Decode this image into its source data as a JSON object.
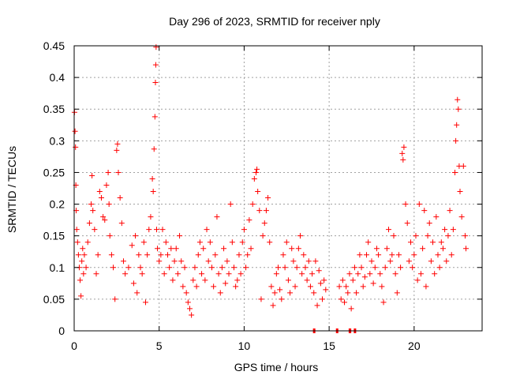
{
  "chart_data": {
    "type": "scatter",
    "title": "Day 296 of 2023, SRMTID for receiver nply",
    "xlabel": "GPS time / hours",
    "ylabel": "SRMTID / TECUs",
    "xlim": [
      0,
      24
    ],
    "ylim": [
      0,
      0.45
    ],
    "x_ticks": [
      0,
      5,
      10,
      15,
      20
    ],
    "x_tick_labels": [
      "0",
      "5",
      "10",
      "15",
      "20"
    ],
    "y_ticks": [
      0,
      0.05,
      0.1,
      0.15,
      0.2,
      0.25,
      0.3,
      0.35,
      0.4,
      0.45
    ],
    "y_tick_labels": [
      "0",
      "0.05",
      "0.1",
      "0.15",
      "0.2",
      "0.25",
      "0.3",
      "0.35",
      "0.4",
      "0.45"
    ],
    "grid": true,
    "marker": "+",
    "color": "#ff0000",
    "series": [
      {
        "name": "SRMTID",
        "points": [
          [
            0.02,
            0.345
          ],
          [
            0.05,
            0.315
          ],
          [
            0.08,
            0.29
          ],
          [
            0.1,
            0.23
          ],
          [
            0.12,
            0.19
          ],
          [
            0.15,
            0.16
          ],
          [
            0.2,
            0.14
          ],
          [
            0.25,
            0.12
          ],
          [
            0.3,
            0.1
          ],
          [
            0.35,
            0.08
          ],
          [
            0.4,
            0.055
          ],
          [
            0.45,
            0.11
          ],
          [
            0.5,
            0.13
          ],
          [
            0.55,
            0.09
          ],
          [
            0.6,
            0.12
          ],
          [
            0.7,
            0.1
          ],
          [
            0.8,
            0.14
          ],
          [
            0.9,
            0.17
          ],
          [
            1.0,
            0.2
          ],
          [
            1.05,
            0.245
          ],
          [
            1.1,
            0.19
          ],
          [
            1.2,
            0.16
          ],
          [
            1.3,
            0.09
          ],
          [
            1.4,
            0.12
          ],
          [
            1.5,
            0.22
          ],
          [
            1.6,
            0.21
          ],
          [
            1.7,
            0.18
          ],
          [
            1.8,
            0.175
          ],
          [
            1.9,
            0.23
          ],
          [
            2.0,
            0.25
          ],
          [
            2.05,
            0.2
          ],
          [
            2.1,
            0.15
          ],
          [
            2.2,
            0.12
          ],
          [
            2.3,
            0.1
          ],
          [
            2.4,
            0.05
          ],
          [
            2.5,
            0.285
          ],
          [
            2.55,
            0.295
          ],
          [
            2.6,
            0.25
          ],
          [
            2.7,
            0.21
          ],
          [
            2.8,
            0.17
          ],
          [
            2.9,
            0.11
          ],
          [
            3.0,
            0.09
          ],
          [
            3.2,
            0.1
          ],
          [
            3.4,
            0.135
          ],
          [
            3.5,
            0.075
          ],
          [
            3.6,
            0.15
          ],
          [
            3.7,
            0.06
          ],
          [
            3.8,
            0.12
          ],
          [
            3.9,
            0.1
          ],
          [
            4.0,
            0.09
          ],
          [
            4.1,
            0.14
          ],
          [
            4.2,
            0.045
          ],
          [
            4.3,
            0.12
          ],
          [
            4.4,
            0.16
          ],
          [
            4.5,
            0.18
          ],
          [
            4.6,
            0.24
          ],
          [
            4.65,
            0.22
          ],
          [
            4.7,
            0.287
          ],
          [
            4.75,
            0.338
          ],
          [
            4.78,
            0.392
          ],
          [
            4.8,
            0.42
          ],
          [
            4.82,
            0.448
          ],
          [
            4.85,
            0.16
          ],
          [
            4.9,
            0.13
          ],
          [
            5.0,
            0.11
          ],
          [
            5.1,
            0.12
          ],
          [
            5.2,
            0.16
          ],
          [
            5.3,
            0.09
          ],
          [
            5.4,
            0.14
          ],
          [
            5.5,
            0.12
          ],
          [
            5.6,
            0.1
          ],
          [
            5.7,
            0.13
          ],
          [
            5.8,
            0.08
          ],
          [
            5.9,
            0.11
          ],
          [
            6.0,
            0.13
          ],
          [
            6.1,
            0.09
          ],
          [
            6.2,
            0.15
          ],
          [
            6.3,
            0.11
          ],
          [
            6.4,
            0.07
          ],
          [
            6.5,
            0.1
          ],
          [
            6.6,
            0.06
          ],
          [
            6.7,
            0.045
          ],
          [
            6.8,
            0.035
          ],
          [
            6.9,
            0.025
          ],
          [
            7.0,
            0.08
          ],
          [
            7.1,
            0.1
          ],
          [
            7.2,
            0.07
          ],
          [
            7.3,
            0.12
          ],
          [
            7.4,
            0.14
          ],
          [
            7.5,
            0.09
          ],
          [
            7.6,
            0.13
          ],
          [
            7.7,
            0.08
          ],
          [
            7.8,
            0.16
          ],
          [
            7.9,
            0.11
          ],
          [
            8.0,
            0.14
          ],
          [
            8.1,
            0.1
          ],
          [
            8.2,
            0.07
          ],
          [
            8.3,
            0.12
          ],
          [
            8.4,
            0.18
          ],
          [
            8.5,
            0.09
          ],
          [
            8.6,
            0.06
          ],
          [
            8.7,
            0.1
          ],
          [
            8.8,
            0.13
          ],
          [
            8.9,
            0.075
          ],
          [
            9.0,
            0.11
          ],
          [
            9.1,
            0.09
          ],
          [
            9.2,
            0.2
          ],
          [
            9.3,
            0.14
          ],
          [
            9.4,
            0.1
          ],
          [
            9.5,
            0.07
          ],
          [
            9.6,
            0.08
          ],
          [
            9.7,
            0.12
          ],
          [
            9.8,
            0.09
          ],
          [
            9.9,
            0.14
          ],
          [
            10.0,
            0.16
          ],
          [
            10.1,
            0.1
          ],
          [
            10.2,
            0.12
          ],
          [
            10.3,
            0.175
          ],
          [
            10.4,
            0.13
          ],
          [
            10.5,
            0.2
          ],
          [
            10.6,
            0.24
          ],
          [
            10.7,
            0.25
          ],
          [
            10.75,
            0.255
          ],
          [
            10.8,
            0.22
          ],
          [
            10.9,
            0.19
          ],
          [
            11.0,
            0.05
          ],
          [
            11.1,
            0.15
          ],
          [
            11.2,
            0.17
          ],
          [
            11.3,
            0.19
          ],
          [
            11.4,
            0.21
          ],
          [
            11.5,
            0.14
          ],
          [
            11.6,
            0.07
          ],
          [
            11.7,
            0.04
          ],
          [
            11.8,
            0.06
          ],
          [
            11.9,
            0.09
          ],
          [
            12.0,
            0.1
          ],
          [
            12.1,
            0.065
          ],
          [
            12.2,
            0.05
          ],
          [
            12.3,
            0.12
          ],
          [
            12.4,
            0.1
          ],
          [
            12.5,
            0.14
          ],
          [
            12.6,
            0.08
          ],
          [
            12.7,
            0.06
          ],
          [
            12.8,
            0.13
          ],
          [
            12.9,
            0.11
          ],
          [
            13.0,
            0.07
          ],
          [
            13.1,
            0.1
          ],
          [
            13.2,
            0.13
          ],
          [
            13.3,
            0.15
          ],
          [
            13.4,
            0.09
          ],
          [
            13.5,
            0.12
          ],
          [
            13.6,
            0.1
          ],
          [
            13.7,
            0.08
          ],
          [
            13.8,
            0.11
          ],
          [
            13.9,
            0.07
          ],
          [
            14.0,
            0.09
          ],
          [
            14.1,
            0.06
          ],
          [
            14.2,
            0.11
          ],
          [
            14.3,
            0.04
          ],
          [
            14.4,
            0.095
          ],
          [
            14.5,
            0.075
          ],
          [
            14.6,
            0.05
          ],
          [
            14.7,
            0.08
          ],
          [
            14.8,
            0.065
          ],
          [
            15.6,
            0.07
          ],
          [
            15.7,
            0.05
          ],
          [
            15.8,
            0.08
          ],
          [
            15.9,
            0.045
          ],
          [
            16.0,
            0.07
          ],
          [
            16.1,
            0.06
          ],
          [
            16.2,
            0.09
          ],
          [
            16.3,
            0.035
          ],
          [
            16.4,
            0.08
          ],
          [
            16.5,
            0.1
          ],
          [
            16.6,
            0.06
          ],
          [
            16.7,
            0.09
          ],
          [
            16.8,
            0.12
          ],
          [
            16.9,
            0.1
          ],
          [
            17.0,
            0.07
          ],
          [
            17.1,
            0.085
          ],
          [
            17.2,
            0.12
          ],
          [
            17.3,
            0.14
          ],
          [
            17.4,
            0.09
          ],
          [
            17.5,
            0.11
          ],
          [
            17.6,
            0.075
          ],
          [
            17.7,
            0.1
          ],
          [
            17.8,
            0.13
          ],
          [
            17.9,
            0.12
          ],
          [
            18.0,
            0.09
          ],
          [
            18.1,
            0.07
          ],
          [
            18.2,
            0.045
          ],
          [
            18.3,
            0.1
          ],
          [
            18.4,
            0.13
          ],
          [
            18.5,
            0.16
          ],
          [
            18.6,
            0.11
          ],
          [
            18.7,
            0.12
          ],
          [
            18.8,
            0.15
          ],
          [
            18.9,
            0.09
          ],
          [
            19.0,
            0.06
          ],
          [
            19.1,
            0.12
          ],
          [
            19.2,
            0.1
          ],
          [
            19.3,
            0.28
          ],
          [
            19.35,
            0.27
          ],
          [
            19.4,
            0.29
          ],
          [
            19.5,
            0.2
          ],
          [
            19.6,
            0.17
          ],
          [
            19.7,
            0.11
          ],
          [
            19.8,
            0.14
          ],
          [
            19.9,
            0.1
          ],
          [
            20.0,
            0.12
          ],
          [
            20.1,
            0.15
          ],
          [
            20.2,
            0.08
          ],
          [
            20.3,
            0.2
          ],
          [
            20.4,
            0.09
          ],
          [
            20.5,
            0.13
          ],
          [
            20.6,
            0.19
          ],
          [
            20.7,
            0.07
          ],
          [
            20.8,
            0.15
          ],
          [
            20.9,
            0.17
          ],
          [
            21.0,
            0.11
          ],
          [
            21.1,
            0.14
          ],
          [
            21.2,
            0.09
          ],
          [
            21.3,
            0.18
          ],
          [
            21.4,
            0.12
          ],
          [
            21.5,
            0.1
          ],
          [
            21.6,
            0.14
          ],
          [
            21.7,
            0.13
          ],
          [
            21.8,
            0.16
          ],
          [
            21.9,
            0.11
          ],
          [
            22.0,
            0.15
          ],
          [
            22.1,
            0.19
          ],
          [
            22.2,
            0.12
          ],
          [
            22.3,
            0.16
          ],
          [
            22.4,
            0.25
          ],
          [
            22.45,
            0.3
          ],
          [
            22.5,
            0.325
          ],
          [
            22.55,
            0.365
          ],
          [
            22.6,
            0.35
          ],
          [
            22.65,
            0.26
          ],
          [
            22.7,
            0.22
          ],
          [
            22.8,
            0.18
          ],
          [
            22.9,
            0.26
          ],
          [
            23.0,
            0.15
          ],
          [
            23.05,
            0.13
          ]
        ]
      }
    ],
    "gaps": [
      [
        14.05,
        14.15
      ],
      [
        15.4,
        15.5
      ],
      [
        16.15,
        16.3
      ],
      [
        16.45,
        16.55
      ]
    ]
  }
}
